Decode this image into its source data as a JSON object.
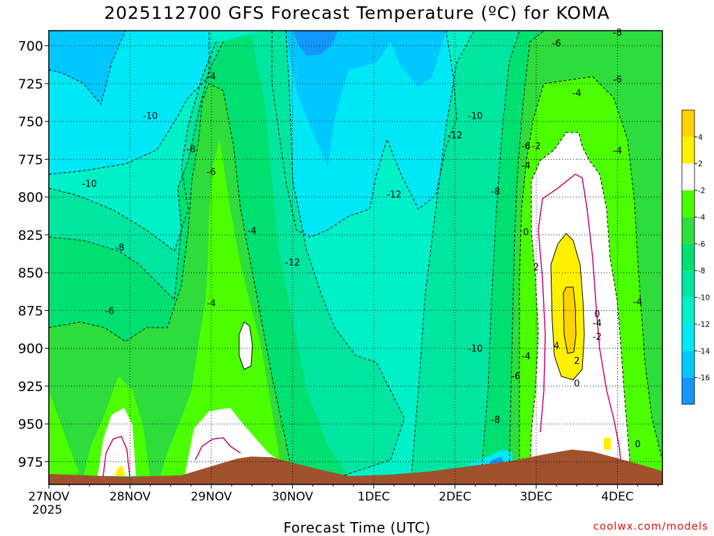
{
  "chart_data": {
    "type": "contour",
    "title": "2025112700 GFS Forecast Temperature (ºC) for KOMA",
    "xlabel": "Forecast Time (UTC)",
    "ylabel": "",
    "credit": "coolwx.com/models",
    "x_ticks": [
      "27NOV",
      "28NOV",
      "29NOV",
      "30NOV",
      "1DEC",
      "2DEC",
      "3DEC",
      "4DEC"
    ],
    "x_year": "2025",
    "y_ticks": [
      700,
      725,
      750,
      775,
      800,
      825,
      850,
      875,
      900,
      925,
      950,
      975
    ],
    "y_range": [
      690,
      990
    ],
    "y_inverted": true,
    "grid": true,
    "colorbar": {
      "ticks": [
        4,
        2,
        -2,
        -4,
        -6,
        -8,
        -10,
        -12,
        -14,
        -16
      ],
      "bins": [
        {
          "lo": 4,
          "hi": 6,
          "color": "#ffd200"
        },
        {
          "lo": 2,
          "hi": 4,
          "color": "#fff000"
        },
        {
          "lo": -2,
          "hi": 2,
          "color": "#ffffff"
        },
        {
          "lo": -4,
          "hi": -2,
          "color": "#4cff00"
        },
        {
          "lo": -6,
          "hi": -4,
          "color": "#2edc3c"
        },
        {
          "lo": -8,
          "hi": -6,
          "color": "#00e070"
        },
        {
          "lo": -10,
          "hi": -8,
          "color": "#00e6a0"
        },
        {
          "lo": -12,
          "hi": -10,
          "color": "#00f0c8"
        },
        {
          "lo": -14,
          "hi": -12,
          "color": "#00e8f5"
        },
        {
          "lo": -16,
          "hi": -14,
          "color": "#00c8ff"
        },
        {
          "lo": -18,
          "hi": -16,
          "color": "#1496ff"
        }
      ]
    },
    "colors": {
      "terrain": "#a0522d",
      "zero_line": "#c8006e"
    },
    "contour_labels": [
      {
        "text": "-8",
        "time": "4DEC 00Z",
        "p": 691
      },
      {
        "text": "-6",
        "time": "3DEC 06Z",
        "p": 698
      },
      {
        "text": "-4",
        "time": "29NOV 00Z",
        "p": 720
      },
      {
        "text": "-6",
        "time": "4DEC 00Z",
        "p": 722
      },
      {
        "text": "-4",
        "time": "3DEC 12Z",
        "p": 731
      },
      {
        "text": "-10",
        "time": "28NOV 06Z",
        "p": 746
      },
      {
        "text": "-10",
        "time": "2DEC 06Z",
        "p": 746
      },
      {
        "text": "-12",
        "time": "2DEC 00Z",
        "p": 759
      },
      {
        "text": "-8",
        "time": "28NOV 18Z",
        "p": 768
      },
      {
        "text": "-6",
        "time": "2DEC 21Z",
        "p": 766
      },
      {
        "text": "-2",
        "time": "3DEC 00Z",
        "p": 766
      },
      {
        "text": "-4",
        "time": "4DEC 00Z",
        "p": 769
      },
      {
        "text": "-4",
        "time": "2DEC 21Z",
        "p": 779
      },
      {
        "text": "-6",
        "time": "29NOV 00Z",
        "p": 783
      },
      {
        "text": "-10",
        "time": "27NOV 12Z",
        "p": 791
      },
      {
        "text": "-8",
        "time": "2DEC 12Z",
        "p": 796
      },
      {
        "text": "-12",
        "time": "1DEC 06Z",
        "p": 798
      },
      {
        "text": "-4",
        "time": "29NOV 12Z",
        "p": 822
      },
      {
        "text": "0",
        "time": "2DEC 21Z",
        "p": 823
      },
      {
        "text": "-8",
        "time": "27NOV 21Z",
        "p": 833
      },
      {
        "text": "2",
        "time": "3DEC 00Z",
        "p": 846
      },
      {
        "text": "-12",
        "time": "30NOV 00Z",
        "p": 843
      },
      {
        "text": "-4",
        "time": "29NOV 00Z",
        "p": 870
      },
      {
        "text": "0",
        "time": "3DEC 18Z",
        "p": 877
      },
      {
        "text": "-4",
        "time": "4DEC 06Z",
        "p": 869
      },
      {
        "text": "-6",
        "time": "27NOV 18Z",
        "p": 875
      },
      {
        "text": "-4",
        "time": "3DEC 18Z",
        "p": 883
      },
      {
        "text": "-2",
        "time": "3DEC 18Z",
        "p": 892
      },
      {
        "text": "4",
        "time": "3DEC 06Z",
        "p": 898
      },
      {
        "text": "-10",
        "time": "2DEC 06Z",
        "p": 900
      },
      {
        "text": "-4",
        "time": "2DEC 21Z",
        "p": 905
      },
      {
        "text": "2",
        "time": "3DEC 12Z",
        "p": 908
      },
      {
        "text": "-6",
        "time": "2DEC 18Z",
        "p": 918
      },
      {
        "text": "0",
        "time": "3DEC 12Z",
        "p": 923
      },
      {
        "text": "-8",
        "time": "2DEC 12Z",
        "p": 947
      },
      {
        "text": "0",
        "time": "4DEC 06Z",
        "p": 963
      }
    ]
  }
}
